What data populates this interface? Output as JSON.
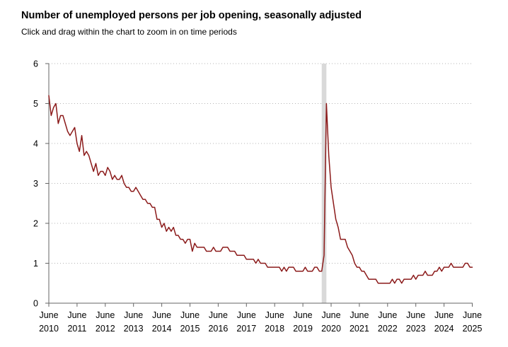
{
  "header": {
    "title": "Number of unemployed persons per job opening, seasonally adjusted",
    "subtitle": "Click and drag within the chart to zoom in on time periods"
  },
  "chart_data": {
    "type": "line",
    "title": "Number of unemployed persons per job opening, seasonally adjusted",
    "subtitle": "Click and drag within the chart to zoom in on time periods",
    "xlabel": "",
    "ylabel": "",
    "ylim": [
      0,
      6
    ],
    "yticks": [
      "0",
      "1",
      "2",
      "3",
      "4",
      "5",
      "6"
    ],
    "xticks": [
      {
        "month": "June",
        "year": "2010"
      },
      {
        "month": "June",
        "year": "2011"
      },
      {
        "month": "June",
        "year": "2012"
      },
      {
        "month": "June",
        "year": "2013"
      },
      {
        "month": "June",
        "year": "2014"
      },
      {
        "month": "June",
        "year": "2015"
      },
      {
        "month": "June",
        "year": "2016"
      },
      {
        "month": "June",
        "year": "2017"
      },
      {
        "month": "June",
        "year": "2018"
      },
      {
        "month": "June",
        "year": "2019"
      },
      {
        "month": "June",
        "year": "2020"
      },
      {
        "month": "June",
        "year": "2021"
      },
      {
        "month": "June",
        "year": "2022"
      },
      {
        "month": "June",
        "year": "2023"
      },
      {
        "month": "June",
        "year": "2024"
      },
      {
        "month": "June",
        "year": "2025"
      }
    ],
    "grid": "horizontal-dotted",
    "recession_shading": {
      "start": "2020-02",
      "end": "2020-04"
    },
    "series": [
      {
        "name": "Unemployed persons per job opening",
        "color": "#8b1a1a",
        "start": "2010-06",
        "frequency": "monthly",
        "values": [
          5.2,
          4.7,
          4.9,
          5.0,
          4.5,
          4.7,
          4.7,
          4.5,
          4.3,
          4.2,
          4.3,
          4.4,
          4.0,
          3.8,
          4.2,
          3.7,
          3.8,
          3.7,
          3.5,
          3.3,
          3.5,
          3.2,
          3.3,
          3.3,
          3.2,
          3.4,
          3.3,
          3.1,
          3.2,
          3.1,
          3.1,
          3.2,
          3.0,
          2.9,
          2.9,
          2.8,
          2.8,
          2.9,
          2.8,
          2.7,
          2.6,
          2.6,
          2.5,
          2.5,
          2.4,
          2.4,
          2.1,
          2.1,
          1.9,
          2.0,
          1.8,
          1.9,
          1.8,
          1.9,
          1.7,
          1.7,
          1.6,
          1.6,
          1.5,
          1.6,
          1.6,
          1.3,
          1.5,
          1.4,
          1.4,
          1.4,
          1.4,
          1.3,
          1.3,
          1.3,
          1.4,
          1.3,
          1.3,
          1.3,
          1.4,
          1.4,
          1.4,
          1.3,
          1.3,
          1.3,
          1.2,
          1.2,
          1.2,
          1.2,
          1.1,
          1.1,
          1.1,
          1.1,
          1.0,
          1.1,
          1.0,
          1.0,
          1.0,
          0.9,
          0.9,
          0.9,
          0.9,
          0.9,
          0.9,
          0.8,
          0.9,
          0.8,
          0.9,
          0.9,
          0.9,
          0.8,
          0.8,
          0.8,
          0.8,
          0.9,
          0.8,
          0.8,
          0.8,
          0.9,
          0.9,
          0.8,
          0.8,
          1.2,
          5.0,
          3.7,
          2.9,
          2.5,
          2.1,
          1.9,
          1.6,
          1.6,
          1.6,
          1.4,
          1.3,
          1.2,
          1.0,
          0.9,
          0.9,
          0.8,
          0.8,
          0.7,
          0.6,
          0.6,
          0.6,
          0.6,
          0.5,
          0.5,
          0.5,
          0.5,
          0.5,
          0.5,
          0.6,
          0.5,
          0.6,
          0.6,
          0.5,
          0.6,
          0.6,
          0.6,
          0.6,
          0.7,
          0.6,
          0.7,
          0.7,
          0.7,
          0.8,
          0.7,
          0.7,
          0.7,
          0.8,
          0.8,
          0.9,
          0.8,
          0.9,
          0.9,
          0.9,
          1.0,
          0.9,
          0.9,
          0.9,
          0.9,
          0.9,
          1.0,
          1.0,
          0.9,
          0.9
        ]
      }
    ]
  }
}
